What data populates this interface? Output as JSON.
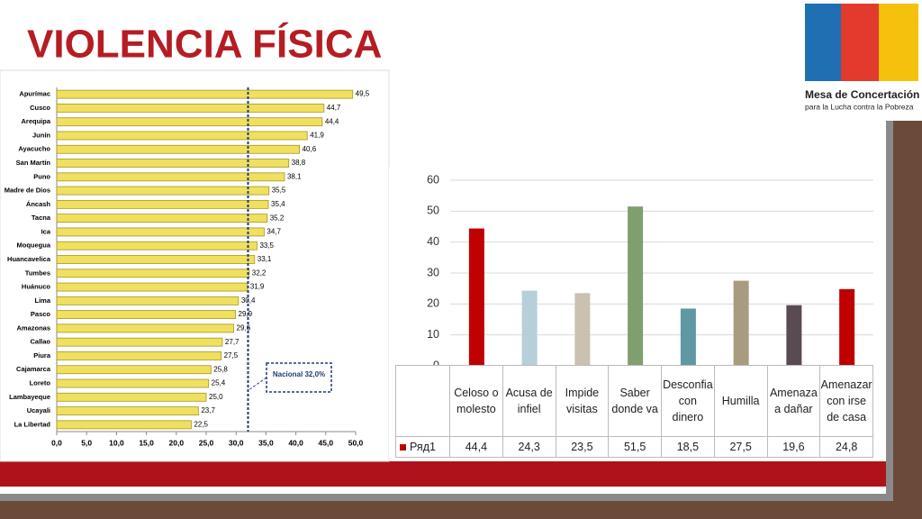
{
  "title": "VIOLENCIA FÍSICA",
  "logo": {
    "name": "Mesa de Concertación",
    "subtitle": "para la Lucha contra la Pobreza"
  },
  "chart_data": [
    {
      "type": "hbar",
      "categories": [
        "Apurímac",
        "Cusco",
        "Arequipa",
        "Junín",
        "Ayacucho",
        "San Martín",
        "Puno",
        "Madre de Dios",
        "Áncash",
        "Tacna",
        "Ica",
        "Moquegua",
        "Huancavelica",
        "Tumbes",
        "Huánuco",
        "Lima",
        "Pasco",
        "Amazonas",
        "Callao",
        "Piura",
        "Cajamarca",
        "Loreto",
        "Lambayeque",
        "Ucayali",
        "La Libertad"
      ],
      "values": [
        49.5,
        44.7,
        44.4,
        41.9,
        40.6,
        38.8,
        38.1,
        35.5,
        35.4,
        35.2,
        34.7,
        33.5,
        33.1,
        32.2,
        31.9,
        30.4,
        29.9,
        29.6,
        27.7,
        27.5,
        25.8,
        25.4,
        25.0,
        23.7,
        22.5
      ],
      "value_labels": [
        "49,5",
        "44,7",
        "44,4",
        "41,9",
        "40,6",
        "38,8",
        "38,1",
        "35,5",
        "35,4",
        "35,2",
        "34,7",
        "33,5",
        "33,1",
        "32,2",
        "31,9",
        "30,4",
        "29,9",
        "29,6",
        "27,7",
        "27,5",
        "25,8",
        "25,4",
        "25,0",
        "23,7",
        "22,5"
      ],
      "color": "#f0e060",
      "xlim": [
        0,
        50
      ],
      "xticks": [
        {
          "value": 0,
          "label": "0,0"
        },
        {
          "value": 5,
          "label": "5,0"
        },
        {
          "value": 10,
          "label": "10,0"
        },
        {
          "value": 15,
          "label": "15,0"
        },
        {
          "value": 20,
          "label": "20,0"
        },
        {
          "value": 25,
          "label": "25,0"
        },
        {
          "value": 30,
          "label": "30,0"
        },
        {
          "value": 35,
          "label": "35,0"
        },
        {
          "value": 40,
          "label": "40,0"
        },
        {
          "value": 45,
          "label": "45,0"
        },
        {
          "value": 50,
          "label": "50,0"
        }
      ],
      "reference": {
        "value": 32,
        "label": "Nacional 32,0%"
      }
    },
    {
      "type": "bar",
      "categories": [
        "Celoso o molesto",
        "Acusa de infiel",
        "Impide visitas",
        "Saber donde va",
        "Desconfia con dinero",
        "Humilla",
        "Amenaza a dañar",
        "Amenazar con irse de casa"
      ],
      "series": [
        {
          "name": "Ряд1",
          "color": "#c00000",
          "colors": [
            "#c00000",
            "#b7cfd8",
            "#cbc1b1",
            "#7f9f6f",
            "#5f97a3",
            "#a99b7f",
            "#5a4a52",
            "#c00000"
          ],
          "values": [
            44.4,
            24.3,
            23.5,
            51.5,
            18.5,
            27.5,
            19.6,
            24.8
          ],
          "value_labels": [
            "44,4",
            "24,3",
            "23,5",
            "51,5",
            "18,5",
            "27,5",
            "19,6",
            "24,8"
          ]
        }
      ],
      "ylim": [
        0,
        60
      ],
      "yticks": [
        0,
        10,
        20,
        30,
        40,
        50,
        60
      ],
      "grid": true
    }
  ]
}
